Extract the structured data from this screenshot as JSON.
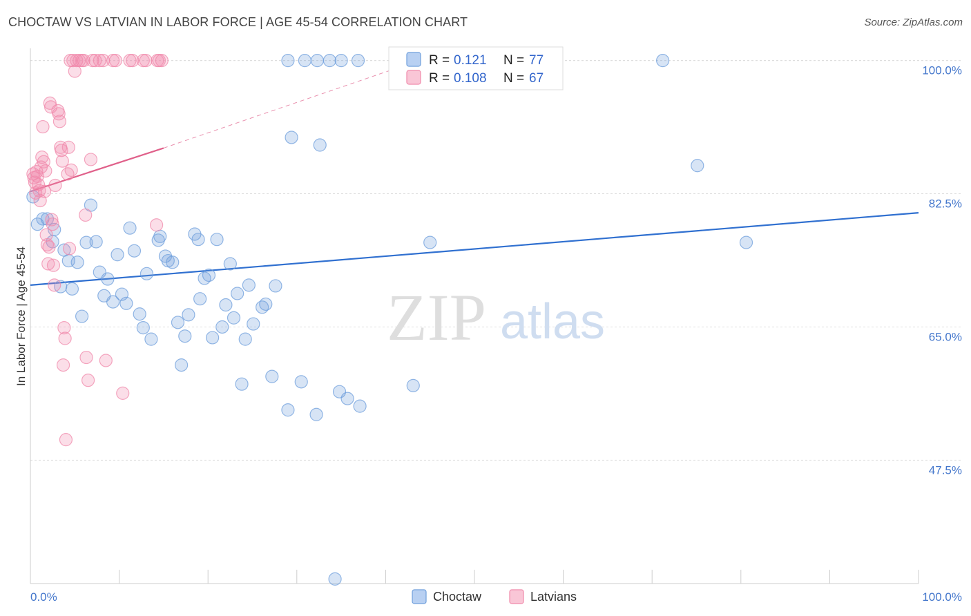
{
  "header": {
    "title": "CHOCTAW VS LATVIAN IN LABOR FORCE | AGE 45-54 CORRELATION CHART",
    "source": "Source: ZipAtlas.com"
  },
  "watermark": {
    "zip": "ZIP",
    "atlas": "atlas"
  },
  "legend": {
    "r_label": "R =",
    "n_label": "N =",
    "items": [
      {
        "name": "Choctaw",
        "r": "0.121",
        "n": "77"
      },
      {
        "name": "Latvians",
        "r": "0.108",
        "n": "67"
      }
    ]
  },
  "chart_data": {
    "type": "scatter",
    "title": "CHOCTAW VS LATVIAN IN LABOR FORCE | AGE 45-54 CORRELATION CHART",
    "xlabel": "",
    "ylabel": "In Labor Force | Age 45-54",
    "xlim": [
      0,
      100
    ],
    "ylim": [
      31.3,
      101.6
    ],
    "x_tick_labels": [
      "0.0%",
      "100.0%"
    ],
    "y_ticks": [
      100.0,
      82.5,
      65.0,
      47.5
    ],
    "y_tick_labels": [
      "100.0%",
      "82.5%",
      "65.0%",
      "47.5%"
    ],
    "grid": true,
    "colors": {
      "choctaw": "#6f9fdc",
      "latvians": "#f08aab",
      "choctaw_line": "#3070d0",
      "latvians_line": "#e0608a"
    },
    "series": [
      {
        "name": "Choctaw",
        "points": [
          [
            0.3,
            82.1
          ],
          [
            0.8,
            78.5
          ],
          [
            1.4,
            79.2
          ],
          [
            1.9,
            79.2
          ],
          [
            2.5,
            76.2
          ],
          [
            2.7,
            77.8
          ],
          [
            3.4,
            70.3
          ],
          [
            3.8,
            75.1
          ],
          [
            4.3,
            73.7
          ],
          [
            4.7,
            70.0
          ],
          [
            5.3,
            73.5
          ],
          [
            5.8,
            66.4
          ],
          [
            6.3,
            76.1
          ],
          [
            6.8,
            81.0
          ],
          [
            7.4,
            76.2
          ],
          [
            7.8,
            72.2
          ],
          [
            8.3,
            69.1
          ],
          [
            8.7,
            71.3
          ],
          [
            9.3,
            68.3
          ],
          [
            9.8,
            74.5
          ],
          [
            10.3,
            69.3
          ],
          [
            10.8,
            68.1
          ],
          [
            11.2,
            78.0
          ],
          [
            11.7,
            75.0
          ],
          [
            12.3,
            66.7
          ],
          [
            12.7,
            64.9
          ],
          [
            13.1,
            72.0
          ],
          [
            13.6,
            63.4
          ],
          [
            14.4,
            76.4
          ],
          [
            14.6,
            76.9
          ],
          [
            15.2,
            74.3
          ],
          [
            15.5,
            73.7
          ],
          [
            16.0,
            73.5
          ],
          [
            16.6,
            65.6
          ],
          [
            17.0,
            60.0
          ],
          [
            17.4,
            63.8
          ],
          [
            17.8,
            66.6
          ],
          [
            18.5,
            77.2
          ],
          [
            18.9,
            76.5
          ],
          [
            19.1,
            68.7
          ],
          [
            19.6,
            71.4
          ],
          [
            20.1,
            71.8
          ],
          [
            20.5,
            63.6
          ],
          [
            21.0,
            76.5
          ],
          [
            21.6,
            65.0
          ],
          [
            22.0,
            67.9
          ],
          [
            22.5,
            73.3
          ],
          [
            22.9,
            66.2
          ],
          [
            23.3,
            69.4
          ],
          [
            23.8,
            57.5
          ],
          [
            24.2,
            63.4
          ],
          [
            24.6,
            70.5
          ],
          [
            25.1,
            65.4
          ],
          [
            26.1,
            67.6
          ],
          [
            26.5,
            68.0
          ],
          [
            27.2,
            58.5
          ],
          [
            27.6,
            70.4
          ],
          [
            29.0,
            54.1
          ],
          [
            29.4,
            89.9
          ],
          [
            30.5,
            57.8
          ],
          [
            32.2,
            53.5
          ],
          [
            32.3,
            100.0
          ],
          [
            32.6,
            88.9
          ],
          [
            34.3,
            31.9
          ],
          [
            34.8,
            56.5
          ],
          [
            35.7,
            55.6
          ],
          [
            37.1,
            54.6
          ],
          [
            29.0,
            100.0
          ],
          [
            30.9,
            100.0
          ],
          [
            33.7,
            100.0
          ],
          [
            35.0,
            100.0
          ],
          [
            36.9,
            100.0
          ],
          [
            43.1,
            57.3
          ],
          [
            45.0,
            76.1
          ],
          [
            71.2,
            100.0
          ],
          [
            75.1,
            86.2
          ],
          [
            80.6,
            76.1
          ]
        ]
      },
      {
        "name": "Latvians",
        "points": [
          [
            0.3,
            85.1
          ],
          [
            0.4,
            84.6
          ],
          [
            0.5,
            84.0
          ],
          [
            0.6,
            82.6
          ],
          [
            0.7,
            85.4
          ],
          [
            0.8,
            84.8
          ],
          [
            0.9,
            83.7
          ],
          [
            1.0,
            82.9
          ],
          [
            1.1,
            81.6
          ],
          [
            1.2,
            86.0
          ],
          [
            1.3,
            87.3
          ],
          [
            1.4,
            91.3
          ],
          [
            1.5,
            86.7
          ],
          [
            1.6,
            82.8
          ],
          [
            1.7,
            85.5
          ],
          [
            1.8,
            77.1
          ],
          [
            1.9,
            75.8
          ],
          [
            2.0,
            73.3
          ],
          [
            2.1,
            75.5
          ],
          [
            2.2,
            94.4
          ],
          [
            2.3,
            93.9
          ],
          [
            2.4,
            79.1
          ],
          [
            2.5,
            78.5
          ],
          [
            2.6,
            73.1
          ],
          [
            2.7,
            70.5
          ],
          [
            2.8,
            83.6
          ],
          [
            3.1,
            93.4
          ],
          [
            3.2,
            93.0
          ],
          [
            3.3,
            92.0
          ],
          [
            3.4,
            88.6
          ],
          [
            3.5,
            88.2
          ],
          [
            3.6,
            86.8
          ],
          [
            3.7,
            60.0
          ],
          [
            3.8,
            64.9
          ],
          [
            3.9,
            63.5
          ],
          [
            4.0,
            50.2
          ],
          [
            4.2,
            85.1
          ],
          [
            4.3,
            88.6
          ],
          [
            4.4,
            75.3
          ],
          [
            4.5,
            100.0
          ],
          [
            4.6,
            85.6
          ],
          [
            4.8,
            100.0
          ],
          [
            5.0,
            98.6
          ],
          [
            5.2,
            100.0
          ],
          [
            5.5,
            100.0
          ],
          [
            5.8,
            100.0
          ],
          [
            6.0,
            100.0
          ],
          [
            6.2,
            79.7
          ],
          [
            6.3,
            61.0
          ],
          [
            6.5,
            58.0
          ],
          [
            6.8,
            87.0
          ],
          [
            7.0,
            100.0
          ],
          [
            7.3,
            100.0
          ],
          [
            7.8,
            100.0
          ],
          [
            8.2,
            100.0
          ],
          [
            8.5,
            60.6
          ],
          [
            9.3,
            100.0
          ],
          [
            9.6,
            100.0
          ],
          [
            10.4,
            56.3
          ],
          [
            11.2,
            100.0
          ],
          [
            11.5,
            100.0
          ],
          [
            12.7,
            100.0
          ],
          [
            13.0,
            100.0
          ],
          [
            14.3,
            100.0
          ],
          [
            14.5,
            100.0
          ],
          [
            14.8,
            100.0
          ],
          [
            14.2,
            78.4
          ]
        ]
      }
    ],
    "trend_lines": [
      {
        "series": "Choctaw",
        "x": [
          0,
          100
        ],
        "y": [
          70.5,
          80.0
        ],
        "style": "solid"
      },
      {
        "series": "Latvians",
        "x": [
          0,
          15
        ],
        "y": [
          82.8,
          88.5
        ],
        "style": "solid"
      },
      {
        "series": "Latvians",
        "x": [
          15,
          45
        ],
        "y": [
          88.5,
          100.5
        ],
        "style": "dashed"
      }
    ]
  }
}
